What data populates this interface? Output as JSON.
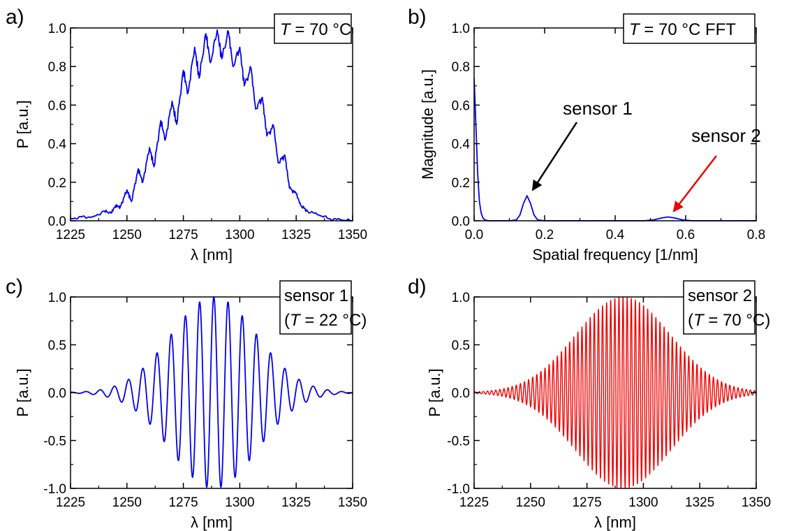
{
  "chart_data": [
    {
      "id": "a",
      "panel_label": "a)",
      "type": "line",
      "xlabel": "λ [nm]",
      "ylabel": "P [a.u.]",
      "xlim": [
        1225,
        1350
      ],
      "ylim": [
        0.0,
        1.0
      ],
      "xticks": [
        "1225",
        "1250",
        "1275",
        "1300",
        "1325",
        "1350"
      ],
      "yticks": [
        "0.0",
        "0.2",
        "0.4",
        "0.6",
        "0.8",
        "1.0"
      ],
      "xtick_values": [
        1225,
        1250,
        1275,
        1300,
        1325,
        1350
      ],
      "ytick_values": [
        0,
        0.2,
        0.4,
        0.6,
        0.8,
        1.0
      ],
      "inset": {
        "var": "T",
        "text": " = 70 °C"
      },
      "series": [
        {
          "color": "#0000ee",
          "x": [
            1225,
            1230,
            1235,
            1240,
            1243,
            1245,
            1247,
            1250,
            1252,
            1255,
            1257,
            1260,
            1262,
            1265,
            1267,
            1270,
            1272,
            1275,
            1277,
            1280,
            1282,
            1285,
            1287,
            1290,
            1292,
            1295,
            1297,
            1300,
            1302,
            1305,
            1307,
            1310,
            1312,
            1315,
            1317,
            1320,
            1322,
            1325,
            1327,
            1330,
            1335,
            1340,
            1345,
            1350
          ],
          "y": [
            0.01,
            0.02,
            0.02,
            0.05,
            0.04,
            0.08,
            0.07,
            0.16,
            0.1,
            0.27,
            0.2,
            0.38,
            0.28,
            0.52,
            0.42,
            0.62,
            0.5,
            0.78,
            0.66,
            0.9,
            0.74,
            0.97,
            0.82,
            0.99,
            0.84,
            0.98,
            0.8,
            0.9,
            0.7,
            0.79,
            0.58,
            0.64,
            0.44,
            0.49,
            0.3,
            0.34,
            0.17,
            0.14,
            0.08,
            0.05,
            0.03,
            0.01,
            0.005,
            0.0
          ]
        }
      ]
    },
    {
      "id": "b",
      "panel_label": "b)",
      "type": "line",
      "xlabel": "Spatial frequency [1/nm]",
      "ylabel": "Magnitude [a.u.]",
      "xlim": [
        0.0,
        0.8
      ],
      "ylim": [
        0.0,
        1.0
      ],
      "xticks": [
        "0.0",
        "0.2",
        "0.4",
        "0.6",
        "0.8"
      ],
      "yticks": [
        "0.0",
        "0.2",
        "0.4",
        "0.6",
        "0.8",
        "1.0"
      ],
      "xtick_values": [
        0,
        0.2,
        0.4,
        0.6,
        0.8
      ],
      "ytick_values": [
        0,
        0.2,
        0.4,
        0.6,
        0.8,
        1.0
      ],
      "inset": {
        "var": "T",
        "text": " = 70 °C FFT"
      },
      "annotations": [
        {
          "text": "sensor 1",
          "color": "#000000",
          "x": 0.15,
          "y": 0.13
        },
        {
          "text": "sensor 2",
          "color": "#ee0000",
          "x": 0.55,
          "y": 0.02
        }
      ],
      "series": [
        {
          "color": "#0000ee",
          "x": [
            0.0,
            0.005,
            0.01,
            0.015,
            0.02,
            0.025,
            0.03,
            0.04,
            0.06,
            0.1,
            0.12,
            0.13,
            0.14,
            0.15,
            0.16,
            0.17,
            0.18,
            0.2,
            0.3,
            0.4,
            0.48,
            0.51,
            0.53,
            0.55,
            0.57,
            0.59,
            0.62,
            0.7,
            0.8
          ],
          "y": [
            0.74,
            0.5,
            0.25,
            0.1,
            0.04,
            0.015,
            0.005,
            0.0,
            0.0,
            0.0,
            0.005,
            0.03,
            0.09,
            0.13,
            0.09,
            0.03,
            0.005,
            0.0,
            0.0,
            0.0,
            0.0,
            0.005,
            0.014,
            0.02,
            0.014,
            0.005,
            0.0,
            0.0,
            0.0
          ]
        }
      ]
    },
    {
      "id": "c",
      "panel_label": "c)",
      "type": "line",
      "xlabel": "λ [nm]",
      "ylabel": "P [a.u.]",
      "xlim": [
        1225,
        1350
      ],
      "ylim": [
        -1.0,
        1.0
      ],
      "xticks": [
        "1225",
        "1250",
        "1275",
        "1300",
        "1325",
        "1350"
      ],
      "yticks": [
        "-1.0",
        "-0.5",
        "0.0",
        "0.5",
        "1.0"
      ],
      "xtick_values": [
        1225,
        1250,
        1275,
        1300,
        1325,
        1350
      ],
      "ytick_values": [
        -1.0,
        -0.5,
        0,
        0.5,
        1.0
      ],
      "inset": {
        "line1": "sensor 1",
        "pre": "(",
        "var": "T",
        "text": " = 22 °C)"
      },
      "series": [
        {
          "color": "#0000ee",
          "model": "gaussian-cosine",
          "center": 1288.5,
          "sigma": 19,
          "period": 6.3,
          "amplitude": 1.0
        }
      ]
    },
    {
      "id": "d",
      "panel_label": "d)",
      "type": "line",
      "xlabel": "λ [nm]",
      "ylabel": "P [a.u.]",
      "xlim": [
        1225,
        1350
      ],
      "ylim": [
        -1.0,
        1.0
      ],
      "xticks": [
        "1225",
        "1250",
        "1275",
        "1300",
        "1325",
        "1350"
      ],
      "yticks": [
        "-1.0",
        "-0.5",
        "0.0",
        "0.5",
        "1.0"
      ],
      "xtick_values": [
        1225,
        1250,
        1275,
        1300,
        1325,
        1350
      ],
      "ytick_values": [
        -1.0,
        -0.5,
        0,
        0.5,
        1.0
      ],
      "inset": {
        "line1": "sensor 2",
        "pre": "(",
        "var": "T",
        "text": " = 70 °C)"
      },
      "series": [
        {
          "color": "#ee0000",
          "model": "gaussian-cosine",
          "center": 1291,
          "sigma": 21,
          "period": 1.82,
          "amplitude": 1.0
        }
      ]
    }
  ]
}
